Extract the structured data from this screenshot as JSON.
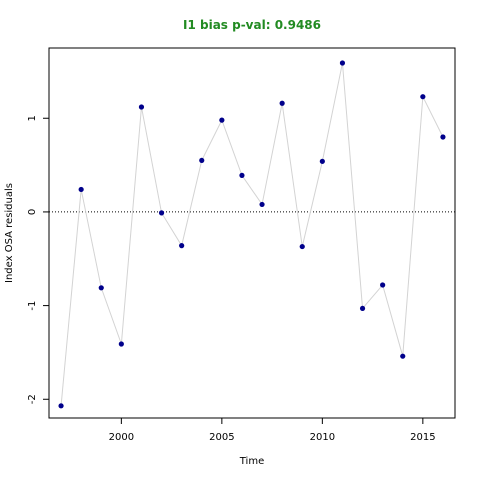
{
  "chart_data": {
    "type": "line",
    "title": "I1 bias p-val: 0.9486",
    "title_color": "#228b22",
    "xlabel": "Time",
    "ylabel": "Index OSA residuals",
    "xlim": [
      1996.4,
      2016.6
    ],
    "ylim": [
      -2.2,
      1.75
    ],
    "x_ticks": [
      2000,
      2005,
      2010,
      2015
    ],
    "y_ticks": [
      -2,
      -1,
      0,
      1
    ],
    "reference_line": {
      "y": 0,
      "style": "dotted"
    },
    "grid": false,
    "line_color": "#d3d3d3",
    "point_color": "#00008b",
    "series": [
      {
        "x": [
          1997,
          1998,
          1999,
          2000,
          2001,
          2002,
          2003,
          2004,
          2005,
          2006,
          2007,
          2008,
          2009,
          2010,
          2011,
          2012,
          2013,
          2014,
          2015,
          2016
        ],
        "values": [
          -2.07,
          0.24,
          -0.81,
          -1.41,
          1.12,
          -0.01,
          -0.36,
          0.55,
          0.98,
          0.39,
          0.08,
          1.16,
          -0.37,
          0.54,
          1.59,
          -1.03,
          -0.78,
          -1.54,
          1.23,
          0.8
        ]
      }
    ]
  }
}
